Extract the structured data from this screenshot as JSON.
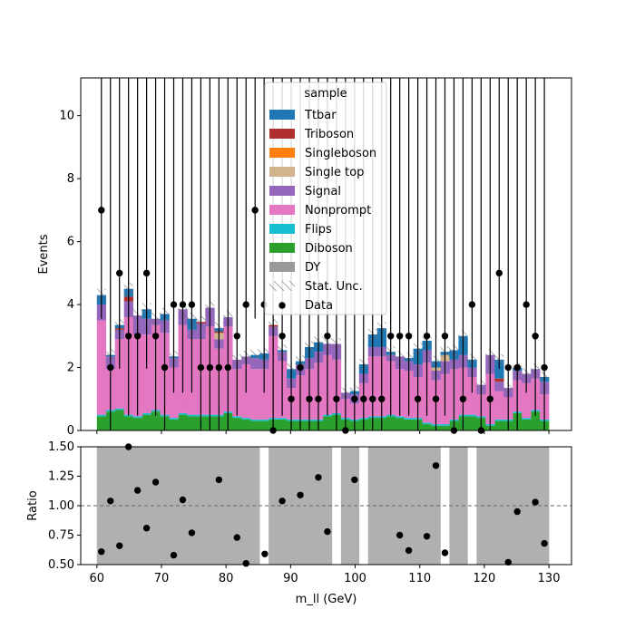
{
  "chart_data": [
    {
      "type": "bar",
      "stacked": true,
      "xlabel": "",
      "ylabel": "Events",
      "xlim": [
        57.5,
        133.5
      ],
      "ylim": [
        0,
        11.2
      ],
      "yticks": [
        0,
        2,
        4,
        6,
        8,
        10
      ],
      "grid": false,
      "legend": {
        "title": "sample",
        "placement": "top-center",
        "entries": [
          "Ttbar",
          "Triboson",
          "Singleboson",
          "Single top",
          "Signal",
          "Nonprompt",
          "Flips",
          "Diboson",
          "DY",
          "Stat. Unc.",
          "Data"
        ]
      },
      "bin_edges": [
        60,
        61.4,
        62.8,
        64.2,
        65.6,
        67,
        68.4,
        69.8,
        71.2,
        72.6,
        74,
        75.4,
        76.8,
        78.2,
        79.6,
        81,
        82.4,
        83.8,
        85.2,
        86.6,
        88,
        89.4,
        90.8,
        92.2,
        93.6,
        95,
        96.4,
        97.8,
        99.2,
        100.6,
        102,
        103.4,
        104.8,
        106.2,
        107.6,
        109,
        110.4,
        111.8,
        113.2,
        114.6,
        116,
        117.4,
        118.8,
        120.2,
        121.6,
        123,
        124.4,
        125.8,
        127.2,
        128.6,
        130
      ],
      "series": [
        {
          "name": "Diboson",
          "color": "#2ca02c",
          "values": [
            0.45,
            0.6,
            0.65,
            0.45,
            0.4,
            0.5,
            0.6,
            0.45,
            0.35,
            0.5,
            0.45,
            0.45,
            0.45,
            0.45,
            0.55,
            0.4,
            0.35,
            0.3,
            0.3,
            0.35,
            0.35,
            0.3,
            0.3,
            0.3,
            0.3,
            0.45,
            0.5,
            0.35,
            0.3,
            0.35,
            0.4,
            0.4,
            0.45,
            0.4,
            0.35,
            0.35,
            0.2,
            0.15,
            0.15,
            0.3,
            0.45,
            0.45,
            0.4,
            0.15,
            0.3,
            0.3,
            0.55,
            0.35,
            0.6,
            0.3
          ]
        },
        {
          "name": "Flips",
          "color": "#17becf",
          "values": [
            0.05,
            0.05,
            0.05,
            0.05,
            0.05,
            0.05,
            0.05,
            0.05,
            0.05,
            0.05,
            0.05,
            0.05,
            0.05,
            0.05,
            0.05,
            0.05,
            0.05,
            0.05,
            0.05,
            0.05,
            0.05,
            0.05,
            0.05,
            0.05,
            0.05,
            0.05,
            0.05,
            0.05,
            0.05,
            0.05,
            0.05,
            0.05,
            0.05,
            0.05,
            0.05,
            0.05,
            0.05,
            0.05,
            0.05,
            0.05,
            0.05,
            0.05,
            0.05,
            0.05,
            0.05,
            0.05,
            0.05,
            0.05,
            0.05,
            0.05
          ]
        },
        {
          "name": "Nonprompt",
          "color": "#e377c2",
          "values": [
            3.0,
            1.3,
            2.2,
            3.1,
            2.6,
            2.5,
            2.7,
            2.6,
            1.6,
            2.8,
            2.4,
            2.4,
            2.8,
            2.1,
            2.7,
            1.5,
            1.7,
            1.6,
            1.6,
            2.6,
            1.8,
            1.0,
            1.4,
            1.6,
            1.8,
            1.9,
            1.7,
            0.6,
            0.5,
            1.1,
            1.9,
            1.9,
            1.7,
            1.5,
            1.5,
            1.3,
            1.9,
            1.4,
            1.6,
            1.6,
            1.5,
            1.2,
            0.7,
            1.6,
            0.9,
            0.7,
            1.0,
            1.1,
            1.0,
            0.8
          ]
        },
        {
          "name": "Signal",
          "color": "#9467bd",
          "values": [
            0.5,
            0.4,
            0.3,
            0.5,
            0.6,
            0.5,
            0.2,
            0.4,
            0.3,
            0.5,
            0.3,
            0.5,
            0.6,
            0.3,
            0.3,
            0.3,
            0.25,
            0.35,
            0.3,
            0.3,
            0.3,
            0.3,
            0.35,
            0.35,
            0.35,
            0.35,
            0.5,
            0.2,
            0.3,
            0.3,
            0.3,
            0.3,
            0.2,
            0.4,
            0.3,
            0.4,
            0.4,
            0.3,
            0.4,
            0.3,
            0.4,
            0.3,
            0.3,
            0.6,
            0.3,
            0.3,
            0.3,
            0.3,
            0.3,
            0.4
          ]
        },
        {
          "name": "Single top",
          "color": "#d2b48c",
          "values": [
            0,
            0,
            0,
            0,
            0,
            0,
            0,
            0,
            0,
            0,
            0,
            0,
            0,
            0.2,
            0,
            0,
            0,
            0,
            0,
            0,
            0,
            0,
            0,
            0,
            0,
            0,
            0,
            0,
            0,
            0,
            0,
            0,
            0,
            0,
            0,
            0,
            0,
            0.1,
            0.2,
            0,
            0,
            0,
            0,
            0,
            0,
            0,
            0,
            0,
            0,
            0
          ]
        },
        {
          "name": "Singleboson",
          "color": "#ff7f0e",
          "values": [
            0,
            0,
            0,
            0,
            0,
            0,
            0,
            0,
            0,
            0,
            0,
            0,
            0,
            0,
            0,
            0,
            0,
            0,
            0,
            0,
            0,
            0,
            0,
            0,
            0,
            0,
            0,
            0,
            0,
            0,
            0,
            0,
            0,
            0,
            0,
            0,
            0,
            0,
            0,
            0,
            0,
            0,
            0,
            0,
            0,
            0,
            0,
            0,
            0,
            0
          ]
        },
        {
          "name": "Triboson",
          "color": "#b03030",
          "values": [
            0,
            0,
            0.05,
            0.15,
            0,
            0,
            0,
            0,
            0,
            0,
            0,
            0.05,
            0,
            0.05,
            0,
            0,
            0,
            0,
            0,
            0.05,
            0,
            0,
            0,
            0,
            0,
            0,
            0,
            0,
            0,
            0,
            0,
            0,
            0,
            0,
            0,
            0,
            0,
            0,
            0,
            0,
            0,
            0,
            0,
            0,
            0.1,
            0,
            0,
            0,
            0,
            0
          ]
        },
        {
          "name": "Ttbar",
          "color": "#1f77b4",
          "values": [
            0.3,
            0.05,
            0.1,
            0.25,
            0,
            0.3,
            0,
            0.2,
            0.05,
            0,
            0.35,
            0,
            0,
            0.1,
            0,
            0,
            0,
            0.1,
            0.2,
            0,
            0.05,
            0.3,
            0.1,
            0.35,
            0.3,
            0,
            0,
            0,
            0.1,
            0.3,
            0.4,
            0.6,
            0.1,
            0,
            0.1,
            0.5,
            0.3,
            0.2,
            0.1,
            0.3,
            0.6,
            0.25,
            0,
            0,
            0.6,
            0,
            0.1,
            0,
            0,
            0.15
          ]
        }
      ],
      "data_points": {
        "name": "Data",
        "x": [
          60.7,
          62.1,
          63.5,
          64.9,
          66.3,
          67.7,
          69.1,
          70.5,
          71.9,
          73.3,
          74.7,
          76.1,
          77.5,
          78.9,
          80.3,
          81.7,
          83.1,
          84.5,
          85.9,
          87.3,
          88.7,
          90.1,
          91.5,
          92.9,
          94.3,
          95.7,
          97.1,
          98.5,
          99.9,
          101.3,
          102.7,
          104.1,
          105.5,
          106.9,
          108.3,
          109.7,
          111.1,
          112.5,
          113.9,
          115.3,
          116.7,
          118.1,
          119.5,
          120.9,
          122.3,
          123.7,
          125.1,
          126.5,
          127.9,
          129.3
        ],
        "y": [
          7,
          2,
          5,
          3,
          3,
          5,
          3,
          2,
          4,
          4,
          4,
          2,
          2,
          2,
          2,
          3,
          4,
          7,
          4,
          0,
          3,
          1,
          2,
          1,
          1,
          3,
          1,
          0,
          1,
          1,
          1,
          1,
          3,
          3,
          3,
          1,
          3,
          1,
          3,
          0,
          1,
          4,
          0,
          1,
          5,
          2,
          2,
          4,
          3,
          2
        ]
      },
      "colors": {
        "data": "#000000",
        "stat_unc_hatch": "#777777"
      }
    },
    {
      "type": "scatter",
      "xlabel": "m_ll (GeV)",
      "ylabel": "Ratio",
      "xlim": [
        57.5,
        133.5
      ],
      "ylim": [
        0.5,
        1.5
      ],
      "xticks": [
        60,
        70,
        80,
        90,
        100,
        110,
        120,
        130
      ],
      "yticks": [
        "0.50",
        "0.75",
        "1.00",
        "1.25",
        "1.50"
      ],
      "reference_line": 1.0,
      "grid": false,
      "band": {
        "color": "#b0b0b0",
        "coverage": [
          1,
          1,
          1,
          1,
          1,
          1,
          1,
          1,
          1,
          1,
          1,
          1,
          1,
          1,
          1,
          1,
          1,
          1,
          0,
          1,
          1,
          1,
          1,
          1,
          1,
          1,
          0,
          1,
          1,
          0,
          1,
          1,
          1,
          1,
          1,
          1,
          1,
          1,
          0,
          1,
          1,
          0,
          1,
          1,
          1,
          1,
          1,
          1,
          1,
          1
        ]
      },
      "x": [
        60.7,
        62.1,
        63.5,
        64.9,
        66.3,
        67.7,
        69.1,
        71.9,
        73.3,
        74.7,
        78.9,
        81.7,
        83.1,
        86.0,
        88.7,
        91.5,
        94.3,
        95.7,
        99.9,
        106.9,
        108.3,
        111.1,
        112.5,
        113.9,
        123.7,
        125.1,
        127.9,
        129.3
      ],
      "y": [
        0.61,
        1.04,
        0.66,
        1.5,
        1.13,
        0.81,
        1.2,
        0.58,
        1.05,
        0.77,
        1.22,
        0.73,
        0.51,
        0.59,
        1.04,
        1.09,
        1.24,
        0.78,
        1.22,
        0.75,
        0.62,
        0.74,
        1.34,
        0.6,
        0.52,
        0.95,
        1.03,
        0.68
      ]
    }
  ]
}
